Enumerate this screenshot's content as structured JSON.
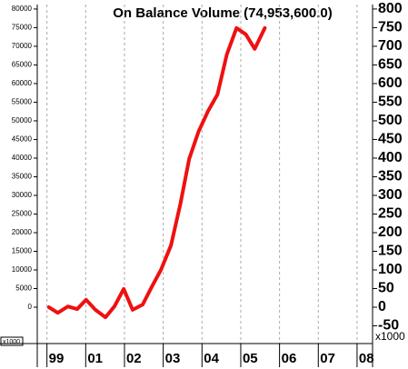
{
  "chart_data": {
    "type": "line",
    "title": "On Balance Volume (74,953,600.0)",
    "xticks": [
      {
        "value": 0,
        "label": "99"
      },
      {
        "value": 1,
        "label": "01"
      },
      {
        "value": 2,
        "label": "02"
      },
      {
        "value": 3,
        "label": "03"
      },
      {
        "value": 4,
        "label": "04"
      },
      {
        "value": 5,
        "label": "05"
      },
      {
        "value": 6,
        "label": "06"
      },
      {
        "value": 7,
        "label": "07"
      },
      {
        "value": 8,
        "label": "08"
      }
    ],
    "xlim": [
      -0.25,
      8.4
    ],
    "ylim": [
      -9750,
      81200
    ],
    "yticks": [
      0,
      5000,
      10000,
      15000,
      20000,
      25000,
      30000,
      35000,
      40000,
      45000,
      50000,
      55000,
      60000,
      65000,
      70000,
      75000,
      80000
    ],
    "y2lim": [
      -97.5,
      812
    ],
    "y2ticks": [
      -50,
      0,
      50,
      100,
      150,
      200,
      250,
      300,
      350,
      400,
      450,
      500,
      550,
      600,
      650,
      700,
      750,
      800
    ],
    "y_multiplier_label": "x1000",
    "y2_multiplier_label": "x1000",
    "grid": true,
    "series": [
      {
        "name": "On Balance Volume",
        "color": "#ee1111",
        "x": [
          0.05,
          0.28,
          0.54,
          0.78,
          1.01,
          1.25,
          1.51,
          1.74,
          1.98,
          2.21,
          2.47,
          2.71,
          2.94,
          3.2,
          3.44,
          3.67,
          3.91,
          4.16,
          4.4,
          4.64,
          4.89,
          5.13,
          5.36,
          5.62
        ],
        "values": [
          0,
          -1500,
          200,
          -500,
          2000,
          -700,
          -2700,
          200,
          4900,
          -700,
          700,
          5600,
          10000,
          16600,
          27600,
          39800,
          47100,
          52700,
          57100,
          67800,
          74900,
          73200,
          69300,
          74900
        ]
      }
    ]
  }
}
